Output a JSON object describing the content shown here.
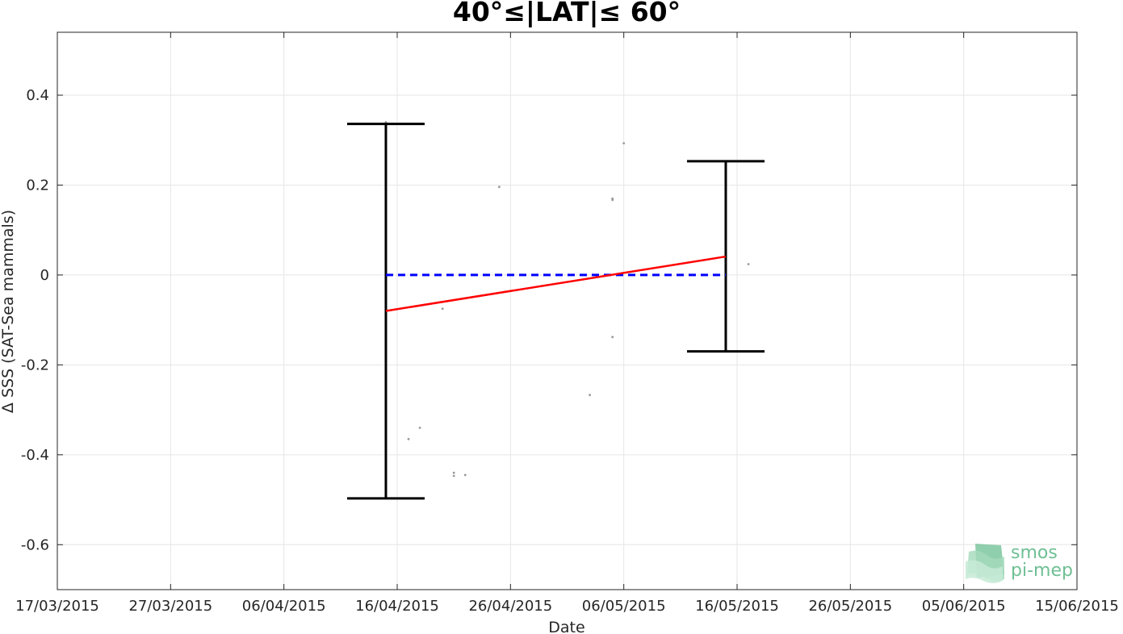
{
  "chart_data": {
    "type": "scatter",
    "title": "40°≤|LAT|≤ 60°",
    "xlabel": "Date",
    "ylabel": "Δ SSS (SAT-Sea mammals)",
    "x_range": [
      "2015-03-17",
      "2015-06-15"
    ],
    "x_ticks": [
      "17/03/2015",
      "27/03/2015",
      "06/04/2015",
      "16/04/2015",
      "26/04/2015",
      "06/05/2015",
      "16/05/2015",
      "26/05/2015",
      "05/06/2015",
      "15/06/2015"
    ],
    "ylim": [
      -0.7,
      0.54
    ],
    "y_ticks": [
      0.4,
      0.2,
      0,
      -0.2,
      -0.4,
      -0.6
    ],
    "y_tick_labels": [
      "0.4",
      "0.2",
      "0",
      "-0.2",
      "-0.4",
      "-0.6"
    ],
    "grid": true,
    "points": [
      {
        "x": "2015-04-15",
        "y": 0.34
      },
      {
        "x": "2015-04-17",
        "y": -0.365
      },
      {
        "x": "2015-04-18",
        "y": -0.34
      },
      {
        "x": "2015-04-20",
        "y": -0.075
      },
      {
        "x": "2015-04-21",
        "y": -0.44
      },
      {
        "x": "2015-04-21",
        "y": -0.447
      },
      {
        "x": "2015-04-22",
        "y": -0.445
      },
      {
        "x": "2015-04-25",
        "y": 0.196
      },
      {
        "x": "2015-05-03",
        "y": -0.267
      },
      {
        "x": "2015-05-05",
        "y": -0.138
      },
      {
        "x": "2015-05-05",
        "y": 0.17
      },
      {
        "x": "2015-05-05",
        "y": 0.167
      },
      {
        "x": "2015-05-06",
        "y": 0.293
      },
      {
        "x": "2015-05-17",
        "y": 0.024
      }
    ],
    "error_bars": [
      {
        "x": "2015-04-15",
        "low": -0.497,
        "high": 0.336
      },
      {
        "x": "2015-05-15",
        "low": -0.17,
        "high": 0.253
      }
    ],
    "trend_line": {
      "x": [
        "2015-04-15",
        "2015-05-15"
      ],
      "y": [
        -0.08,
        0.041
      ],
      "color": "#ff0000"
    },
    "zero_line": {
      "x": [
        "2015-04-15",
        "2015-05-15"
      ],
      "y": 0,
      "color": "#0000ff",
      "style": "dashed"
    },
    "colors": {
      "points": "#999999",
      "error_bars": "#000000",
      "grid": "#e6e6e6",
      "axes": "#262626"
    }
  },
  "logo": {
    "line1": "smos",
    "line2": "pi-mep"
  }
}
